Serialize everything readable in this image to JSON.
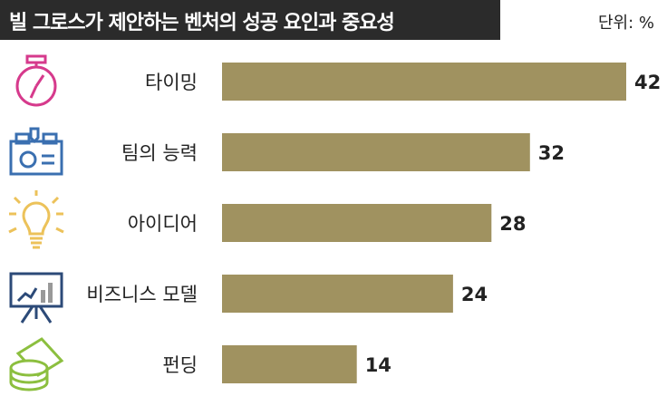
{
  "header": {
    "title": "빌 그로스가 제안하는 벤처의 성공 요인과 중요성",
    "unit": "단위: %"
  },
  "chart_data": {
    "type": "bar",
    "orientation": "horizontal",
    "title": "빌 그로스가 제안하는 벤처의 성공 요인과 중요성",
    "unit": "단위: %",
    "categories": [
      "타이밍",
      "팀의 능력",
      "아이디어",
      "비즈니스 모델",
      "펀딩"
    ],
    "values": [
      42,
      32,
      28,
      24,
      14
    ],
    "icons": [
      "stopwatch-icon",
      "id-card-icon",
      "lightbulb-icon",
      "presentation-board-icon",
      "money-stack-icon"
    ],
    "icon_colors": [
      "#d63a8c",
      "#3a6fb0",
      "#ecc25a",
      "#2c4a78",
      "#8cbf3f"
    ],
    "bar_color": "#a09260",
    "xlim": [
      0,
      42
    ],
    "grid": false,
    "legend": "none"
  }
}
